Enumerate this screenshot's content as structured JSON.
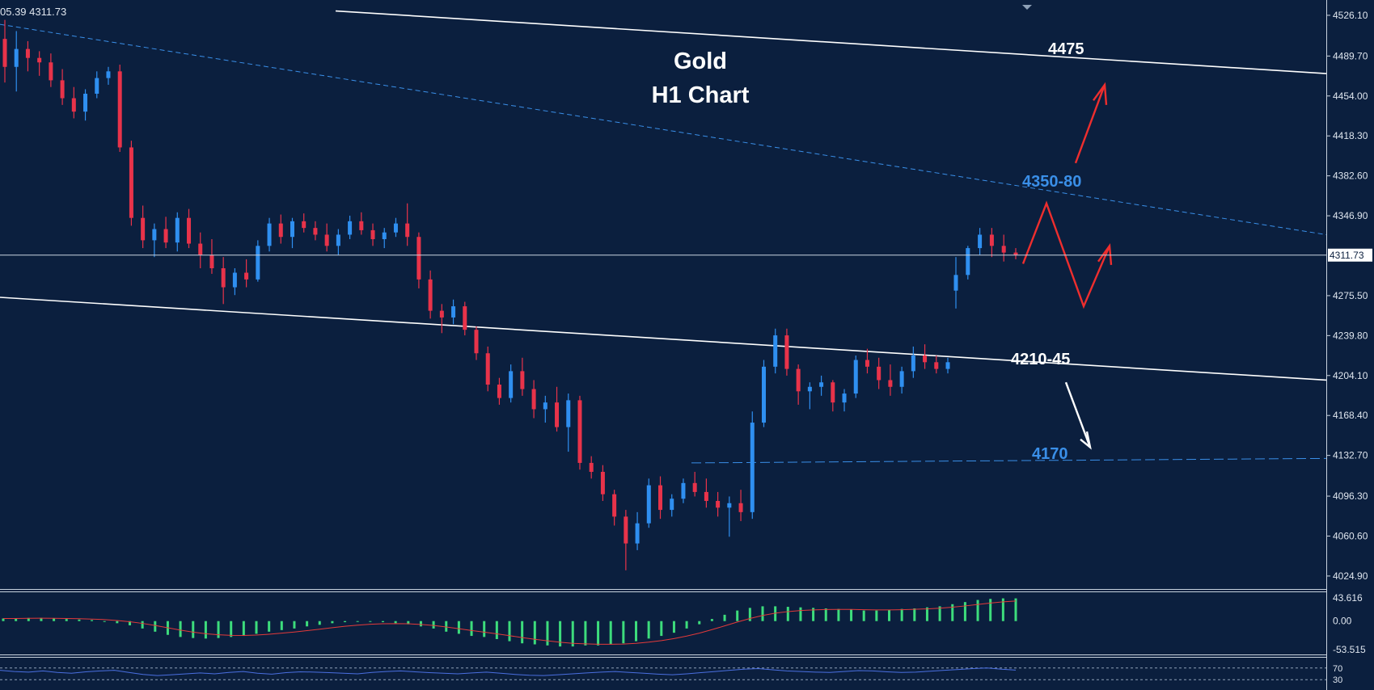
{
  "header": {
    "ohlc_text": "05.39 4311.73"
  },
  "colors": {
    "background": "#0b1f3e",
    "bull": "#2f8ff0",
    "bear": "#e8334a",
    "grid_text": "#dfe6ef",
    "channel_white": "#ffffff",
    "channel_blue": "#3a8fe8",
    "arrow_red": "#ee2e2e",
    "macd_hist": "#3ddc7c",
    "macd_signal": "#e33a3a",
    "rsi_line": "#4a6fe0"
  },
  "chart_data": {
    "type": "candlestick",
    "title": "Gold",
    "subtitle": "H1 Chart",
    "symbol_timeframe": "H1",
    "y_ticks": [
      "4526.10",
      "4489.70",
      "4454.00",
      "4418.30",
      "4382.60",
      "4346.90",
      "4311.73",
      "4275.50",
      "4239.80",
      "4204.10",
      "4168.40",
      "4132.70",
      "4096.30",
      "4060.60",
      "4024.90"
    ],
    "ylim": [
      4014.0,
      4534.0
    ],
    "current_price": "4311.73",
    "candles": [
      [
        4505,
        4522,
        4466,
        4480
      ],
      [
        4480,
        4512,
        4458,
        4496
      ],
      [
        4496,
        4503,
        4476,
        4488
      ],
      [
        4488,
        4494,
        4472,
        4484
      ],
      [
        4484,
        4492,
        4462,
        4468
      ],
      [
        4468,
        4478,
        4446,
        4452
      ],
      [
        4452,
        4462,
        4434,
        4440
      ],
      [
        4440,
        4460,
        4432,
        4456
      ],
      [
        4456,
        4476,
        4452,
        4470
      ],
      [
        4470,
        4480,
        4464,
        4476
      ],
      [
        4476,
        4482,
        4404,
        4408
      ],
      [
        4408,
        4414,
        4338,
        4345
      ],
      [
        4345,
        4356,
        4318,
        4325
      ],
      [
        4325,
        4340,
        4310,
        4335
      ],
      [
        4335,
        4346,
        4318,
        4323
      ],
      [
        4323,
        4350,
        4315,
        4345
      ],
      [
        4345,
        4353,
        4318,
        4322
      ],
      [
        4322,
        4332,
        4300,
        4312
      ],
      [
        4312,
        4326,
        4295,
        4300
      ],
      [
        4300,
        4310,
        4268,
        4283
      ],
      [
        4283,
        4300,
        4276,
        4296
      ],
      [
        4296,
        4308,
        4283,
        4290
      ],
      [
        4290,
        4325,
        4288,
        4320
      ],
      [
        4320,
        4345,
        4315,
        4340
      ],
      [
        4340,
        4348,
        4322,
        4328
      ],
      [
        4328,
        4345,
        4318,
        4342
      ],
      [
        4342,
        4349,
        4332,
        4336
      ],
      [
        4336,
        4342,
        4325,
        4330
      ],
      [
        4330,
        4340,
        4315,
        4320
      ],
      [
        4320,
        4335,
        4312,
        4330
      ],
      [
        4330,
        4347,
        4326,
        4342
      ],
      [
        4342,
        4350,
        4330,
        4334
      ],
      [
        4334,
        4340,
        4320,
        4326
      ],
      [
        4326,
        4336,
        4318,
        4332
      ],
      [
        4332,
        4345,
        4328,
        4340
      ],
      [
        4340,
        4358,
        4320,
        4328
      ],
      [
        4328,
        4332,
        4282,
        4290
      ],
      [
        4290,
        4298,
        4255,
        4262
      ],
      [
        4262,
        4268,
        4242,
        4256
      ],
      [
        4256,
        4272,
        4250,
        4266
      ],
      [
        4266,
        4270,
        4240,
        4245
      ],
      [
        4245,
        4248,
        4218,
        4224
      ],
      [
        4224,
        4230,
        4190,
        4196
      ],
      [
        4196,
        4202,
        4178,
        4184
      ],
      [
        4184,
        4214,
        4180,
        4208
      ],
      [
        4208,
        4220,
        4186,
        4192
      ],
      [
        4192,
        4200,
        4166,
        4174
      ],
      [
        4174,
        4186,
        4162,
        4180
      ],
      [
        4180,
        4194,
        4154,
        4158
      ],
      [
        4158,
        4188,
        4136,
        4182
      ],
      [
        4182,
        4186,
        4120,
        4126
      ],
      [
        4126,
        4132,
        4112,
        4118
      ],
      [
        4118,
        4124,
        4092,
        4098
      ],
      [
        4098,
        4102,
        4070,
        4078
      ],
      [
        4078,
        4084,
        4030,
        4054
      ],
      [
        4054,
        4082,
        4048,
        4072
      ],
      [
        4072,
        4112,
        4068,
        4106
      ],
      [
        4106,
        4114,
        4076,
        4084
      ],
      [
        4084,
        4098,
        4078,
        4094
      ],
      [
        4094,
        4112,
        4090,
        4108
      ],
      [
        4108,
        4118,
        4096,
        4100
      ],
      [
        4100,
        4112,
        4086,
        4092
      ],
      [
        4092,
        4100,
        4078,
        4086
      ],
      [
        4086,
        4096,
        4060,
        4090
      ],
      [
        4090,
        4102,
        4074,
        4082
      ],
      [
        4082,
        4172,
        4076,
        4162
      ],
      [
        4162,
        4218,
        4158,
        4212
      ],
      [
        4212,
        4246,
        4206,
        4240
      ],
      [
        4240,
        4246,
        4204,
        4210
      ],
      [
        4210,
        4214,
        4178,
        4190
      ],
      [
        4190,
        4198,
        4174,
        4194
      ],
      [
        4194,
        4204,
        4186,
        4198
      ],
      [
        4198,
        4200,
        4172,
        4180
      ],
      [
        4180,
        4192,
        4172,
        4188
      ],
      [
        4188,
        4222,
        4184,
        4218
      ],
      [
        4218,
        4228,
        4206,
        4212
      ],
      [
        4212,
        4220,
        4192,
        4200
      ],
      [
        4200,
        4214,
        4186,
        4194
      ],
      [
        4194,
        4212,
        4188,
        4208
      ],
      [
        4208,
        4230,
        4202,
        4222
      ],
      [
        4222,
        4232,
        4210,
        4216
      ],
      [
        4216,
        4222,
        4206,
        4210
      ],
      [
        4210,
        4220,
        4206,
        4216
      ],
      [
        4280,
        4310,
        4264,
        4294
      ],
      [
        4294,
        4320,
        4290,
        4318
      ],
      [
        4318,
        4336,
        4312,
        4330
      ],
      [
        4330,
        4336,
        4310,
        4320
      ],
      [
        4320,
        4330,
        4306,
        4314
      ],
      [
        4314,
        4318,
        4308,
        4311.73
      ]
    ],
    "annotations": [
      {
        "text": "4475",
        "color": "#ffffff"
      },
      {
        "text": "4350-80",
        "color": "#3a8fe8"
      },
      {
        "text": "4210-45",
        "color": "#ffffff"
      },
      {
        "text": "4170",
        "color": "#3a8fe8"
      }
    ],
    "macd": {
      "y_ticks": [
        "43.616",
        "0.00",
        "-53.515"
      ],
      "ylim": [
        -60,
        50
      ],
      "histogram": [
        5,
        5,
        6,
        6,
        5,
        4,
        3,
        2,
        0,
        -4,
        -8,
        -14,
        -20,
        -26,
        -30,
        -32,
        -33,
        -32,
        -30,
        -28,
        -24,
        -20,
        -17,
        -14,
        -10,
        -7,
        -4,
        -2,
        -1,
        -1,
        -2,
        -4,
        -6,
        -10,
        -14,
        -20,
        -24,
        -28,
        -30,
        -34,
        -38,
        -42,
        -44,
        -46,
        -48,
        -48,
        -46,
        -46,
        -44,
        -42,
        -38,
        -33,
        -28,
        -22,
        -14,
        -6,
        4,
        12,
        20,
        25,
        28,
        28,
        27,
        26,
        25,
        24,
        23,
        22,
        20,
        20,
        21,
        23,
        24,
        26,
        28,
        32,
        36,
        40,
        42,
        43,
        43
      ]
    },
    "rsi": {
      "y_ticks": [
        "70",
        "30"
      ],
      "ylim": [
        0,
        100
      ],
      "values": [
        62,
        58,
        56,
        60,
        55,
        52,
        57,
        60,
        62,
        55,
        48,
        44,
        47,
        50,
        53,
        50,
        55,
        58,
        52,
        49,
        54,
        57,
        56,
        54,
        52,
        50,
        55,
        58,
        60,
        57,
        54,
        52,
        50,
        53,
        56,
        52,
        48,
        45,
        44,
        47,
        50,
        53,
        56,
        58,
        55,
        52,
        49,
        47,
        50,
        54,
        58,
        62,
        66,
        68,
        64,
        60,
        58,
        56,
        55,
        58,
        61,
        60,
        57,
        55,
        56,
        59,
        62,
        65,
        68,
        70,
        66,
        63
      ]
    }
  }
}
